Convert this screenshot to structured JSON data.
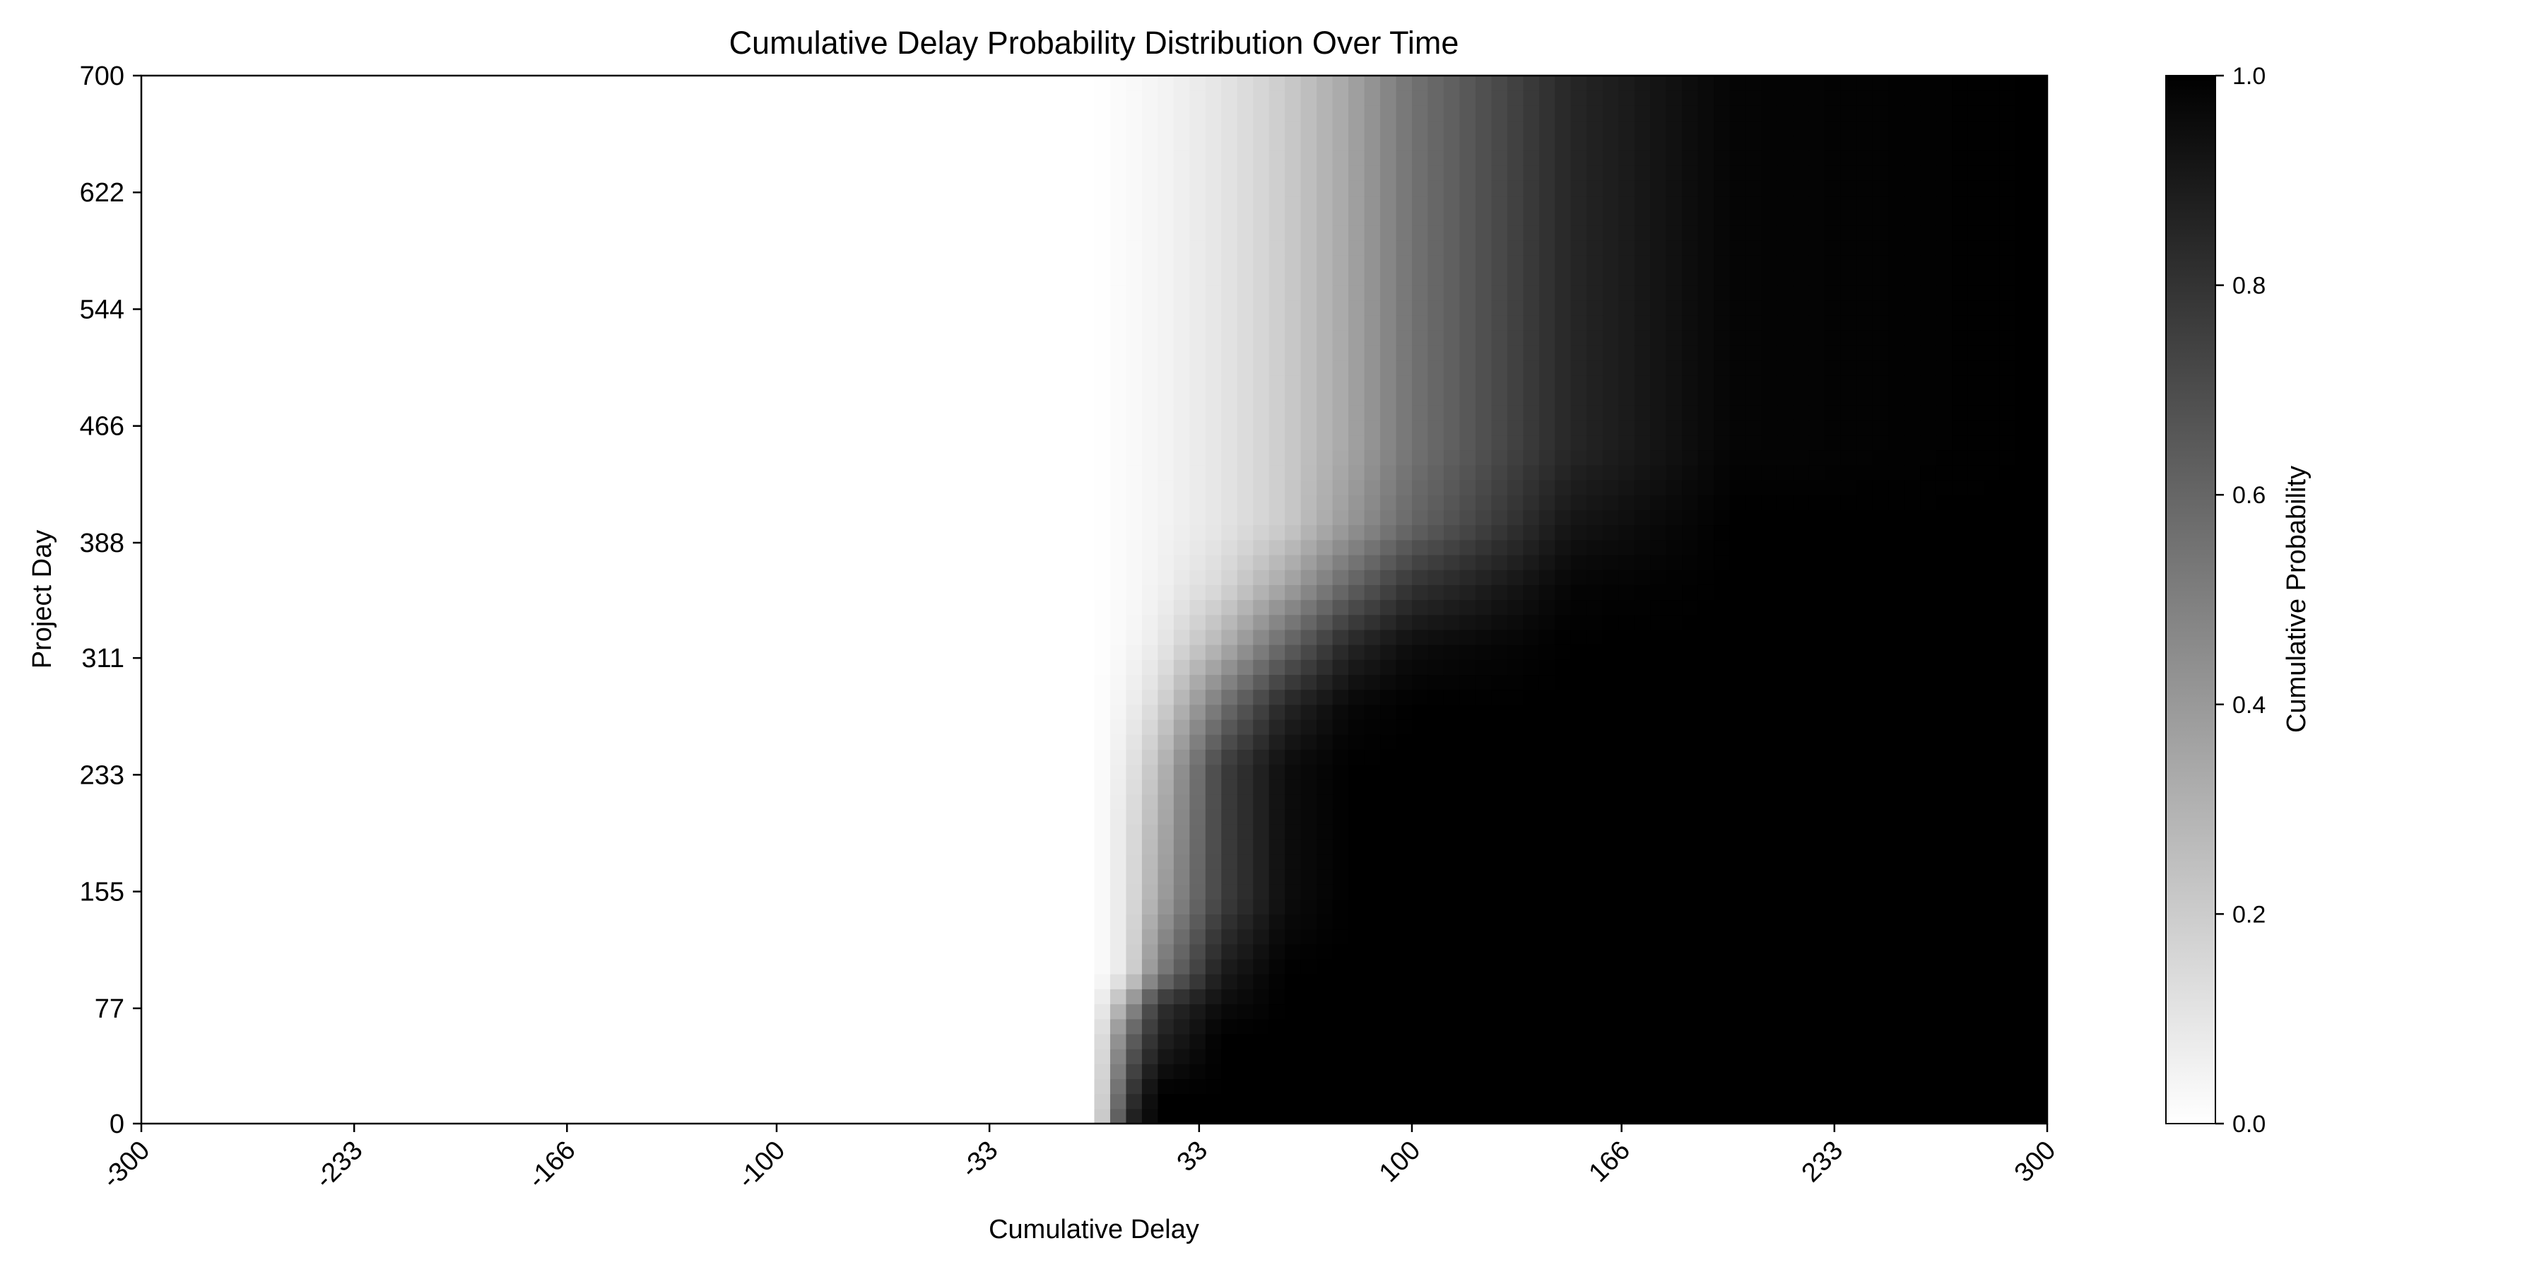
{
  "chart_data": {
    "type": "heatmap",
    "title": "Cumulative Delay Probability Distribution Over Time",
    "xlabel": "Cumulative Delay",
    "ylabel": "Project Day",
    "xlim": [
      -300,
      300
    ],
    "ylim": [
      0,
      700
    ],
    "x_ticks": [
      "-300",
      "-233",
      "-166",
      "-100",
      "-33",
      "33",
      "100",
      "166",
      "233",
      "300"
    ],
    "y_ticks": [
      "0",
      "77",
      "155",
      "233",
      "311",
      "388",
      "466",
      "544",
      "622",
      "700"
    ],
    "colorbar": {
      "label": "Cumulative Probability",
      "range": [
        0.0,
        1.0
      ],
      "ticks": [
        "0.0",
        "0.2",
        "0.4",
        "0.6",
        "0.8",
        "1.0"
      ],
      "colormap": "white-to-black",
      "low_color": "#ffffff",
      "high_color": "#000000"
    },
    "value_description": "cumulative probability P(delay <= x) for each project day",
    "series": [
      {
        "day": 0,
        "delay": [
          0,
          10,
          20,
          40,
          60,
          80,
          100,
          150,
          200,
          300
        ],
        "probability": [
          0.0,
          0.85,
          1.0,
          1.0,
          1.0,
          1.0,
          1.0,
          1.0,
          1.0,
          1.0
        ]
      },
      {
        "day": 20,
        "delay": [
          0,
          10,
          20,
          40,
          60,
          80,
          100,
          150,
          200,
          300
        ],
        "probability": [
          0.0,
          0.75,
          1.0,
          1.0,
          1.0,
          1.0,
          1.0,
          1.0,
          1.0,
          1.0
        ]
      },
      {
        "day": 60,
        "delay": [
          0,
          10,
          20,
          40,
          60,
          80,
          100,
          150,
          200,
          300
        ],
        "probability": [
          0.0,
          0.55,
          0.85,
          1.0,
          1.0,
          1.0,
          1.0,
          1.0,
          1.0,
          1.0
        ]
      },
      {
        "day": 80,
        "delay": [
          0,
          10,
          20,
          40,
          60,
          80,
          100,
          150,
          200,
          300
        ],
        "probability": [
          0.0,
          0.35,
          0.8,
          0.95,
          1.0,
          1.0,
          1.0,
          1.0,
          1.0,
          1.0
        ]
      },
      {
        "day": 100,
        "delay": [
          0,
          10,
          20,
          40,
          60,
          80,
          100,
          150,
          200,
          300
        ],
        "probability": [
          0.0,
          0.1,
          0.5,
          0.9,
          1.0,
          1.0,
          1.0,
          1.0,
          1.0,
          1.0
        ]
      },
      {
        "day": 150,
        "delay": [
          0,
          10,
          20,
          40,
          60,
          80,
          100,
          150,
          200,
          300
        ],
        "probability": [
          0.0,
          0.1,
          0.35,
          0.75,
          0.95,
          1.0,
          1.0,
          1.0,
          1.0,
          1.0
        ]
      },
      {
        "day": 200,
        "delay": [
          0,
          10,
          20,
          40,
          60,
          80,
          100,
          150,
          200,
          300
        ],
        "probability": [
          0.0,
          0.1,
          0.3,
          0.75,
          0.95,
          1.0,
          1.0,
          1.0,
          1.0,
          1.0
        ]
      },
      {
        "day": 240,
        "delay": [
          0,
          10,
          20,
          40,
          60,
          80,
          100,
          150,
          200,
          300
        ],
        "probability": [
          0.0,
          0.08,
          0.25,
          0.75,
          0.95,
          1.0,
          1.0,
          1.0,
          1.0,
          1.0
        ]
      },
      {
        "day": 280,
        "delay": [
          0,
          10,
          20,
          40,
          60,
          80,
          100,
          150,
          200,
          300
        ],
        "probability": [
          0.0,
          0.05,
          0.15,
          0.55,
          0.85,
          0.97,
          1.0,
          1.0,
          1.0,
          1.0
        ]
      },
      {
        "day": 320,
        "delay": [
          0,
          10,
          20,
          40,
          60,
          80,
          100,
          150,
          200,
          300
        ],
        "probability": [
          0.0,
          0.03,
          0.08,
          0.3,
          0.6,
          0.85,
          0.95,
          1.0,
          1.0,
          1.0
        ]
      },
      {
        "day": 360,
        "delay": [
          0,
          10,
          20,
          40,
          60,
          80,
          100,
          150,
          200,
          300
        ],
        "probability": [
          0.0,
          0.02,
          0.05,
          0.15,
          0.35,
          0.6,
          0.8,
          0.98,
          1.0,
          1.0
        ]
      },
      {
        "day": 400,
        "delay": [
          0,
          10,
          20,
          40,
          60,
          80,
          100,
          150,
          200,
          300
        ],
        "probability": [
          0.0,
          0.02,
          0.04,
          0.1,
          0.2,
          0.4,
          0.6,
          0.92,
          1.0,
          1.0
        ]
      },
      {
        "day": 450,
        "delay": [
          0,
          10,
          20,
          40,
          60,
          80,
          100,
          150,
          200,
          300
        ],
        "probability": [
          0.0,
          0.02,
          0.04,
          0.1,
          0.2,
          0.35,
          0.55,
          0.85,
          0.98,
          1.0
        ]
      },
      {
        "day": 500,
        "delay": [
          0,
          10,
          20,
          40,
          60,
          80,
          100,
          150,
          200,
          300
        ],
        "probability": [
          0.0,
          0.02,
          0.04,
          0.1,
          0.2,
          0.35,
          0.55,
          0.85,
          0.98,
          1.0
        ]
      },
      {
        "day": 550,
        "delay": [
          0,
          10,
          20,
          40,
          60,
          80,
          100,
          150,
          200,
          300
        ],
        "probability": [
          0.0,
          0.02,
          0.04,
          0.1,
          0.2,
          0.35,
          0.55,
          0.85,
          0.98,
          1.0
        ]
      },
      {
        "day": 600,
        "delay": [
          0,
          10,
          20,
          40,
          60,
          80,
          100,
          150,
          200,
          300
        ],
        "probability": [
          0.0,
          0.02,
          0.04,
          0.1,
          0.2,
          0.35,
          0.55,
          0.85,
          0.98,
          1.0
        ]
      },
      {
        "day": 650,
        "delay": [
          0,
          10,
          20,
          40,
          60,
          80,
          100,
          150,
          200,
          300
        ],
        "probability": [
          0.0,
          0.02,
          0.04,
          0.1,
          0.2,
          0.35,
          0.55,
          0.85,
          0.98,
          1.0
        ]
      },
      {
        "day": 700,
        "delay": [
          0,
          10,
          20,
          40,
          60,
          80,
          100,
          150,
          200,
          300
        ],
        "probability": [
          0.0,
          0.02,
          0.04,
          0.1,
          0.2,
          0.35,
          0.55,
          0.85,
          0.98,
          1.0
        ]
      }
    ]
  }
}
